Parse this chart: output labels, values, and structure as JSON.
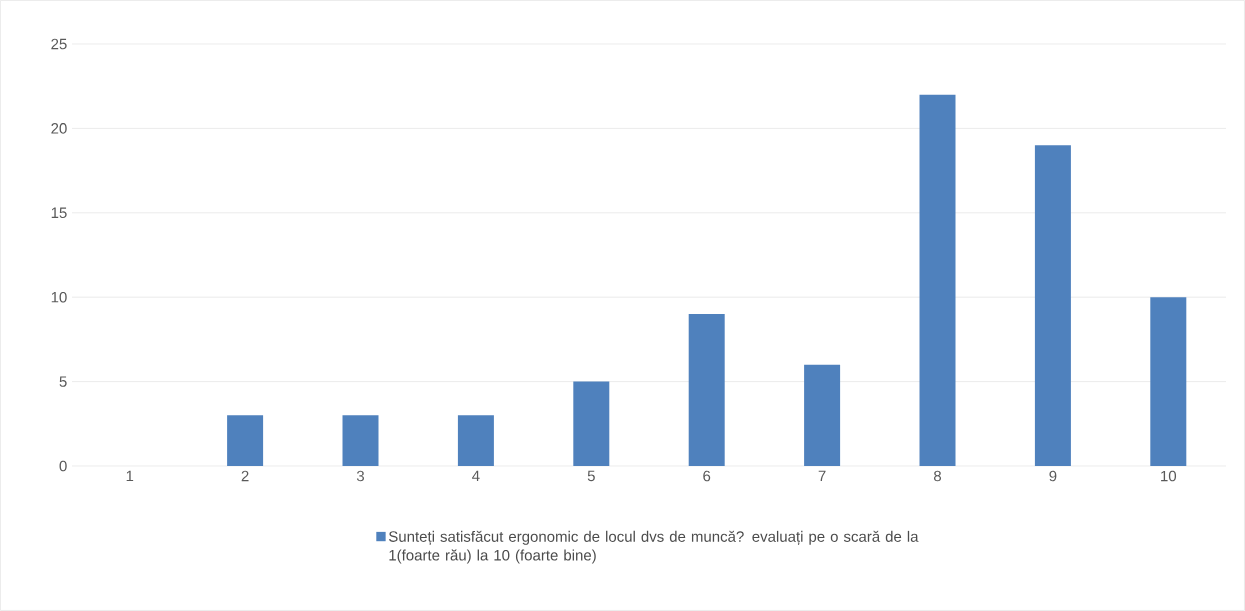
{
  "chart_data": {
    "type": "bar",
    "categories": [
      "1",
      "2",
      "3",
      "4",
      "5",
      "6",
      "7",
      "8",
      "9",
      "10"
    ],
    "series": [
      {
        "name": "Sunteți satisfăcut ergonomic de  locul dvs de muncă? evaluați pe o scară de la 1(foarte rău) la 10 (foarte bine)",
        "color": "#4f81bd",
        "values": [
          0,
          3,
          3,
          3,
          5,
          9,
          6,
          22,
          19,
          10
        ]
      }
    ],
    "ylim": [
      0,
      25
    ],
    "yticks": [
      0,
      5,
      10,
      15,
      20,
      25
    ],
    "grid": "y",
    "legend": "bottom"
  }
}
